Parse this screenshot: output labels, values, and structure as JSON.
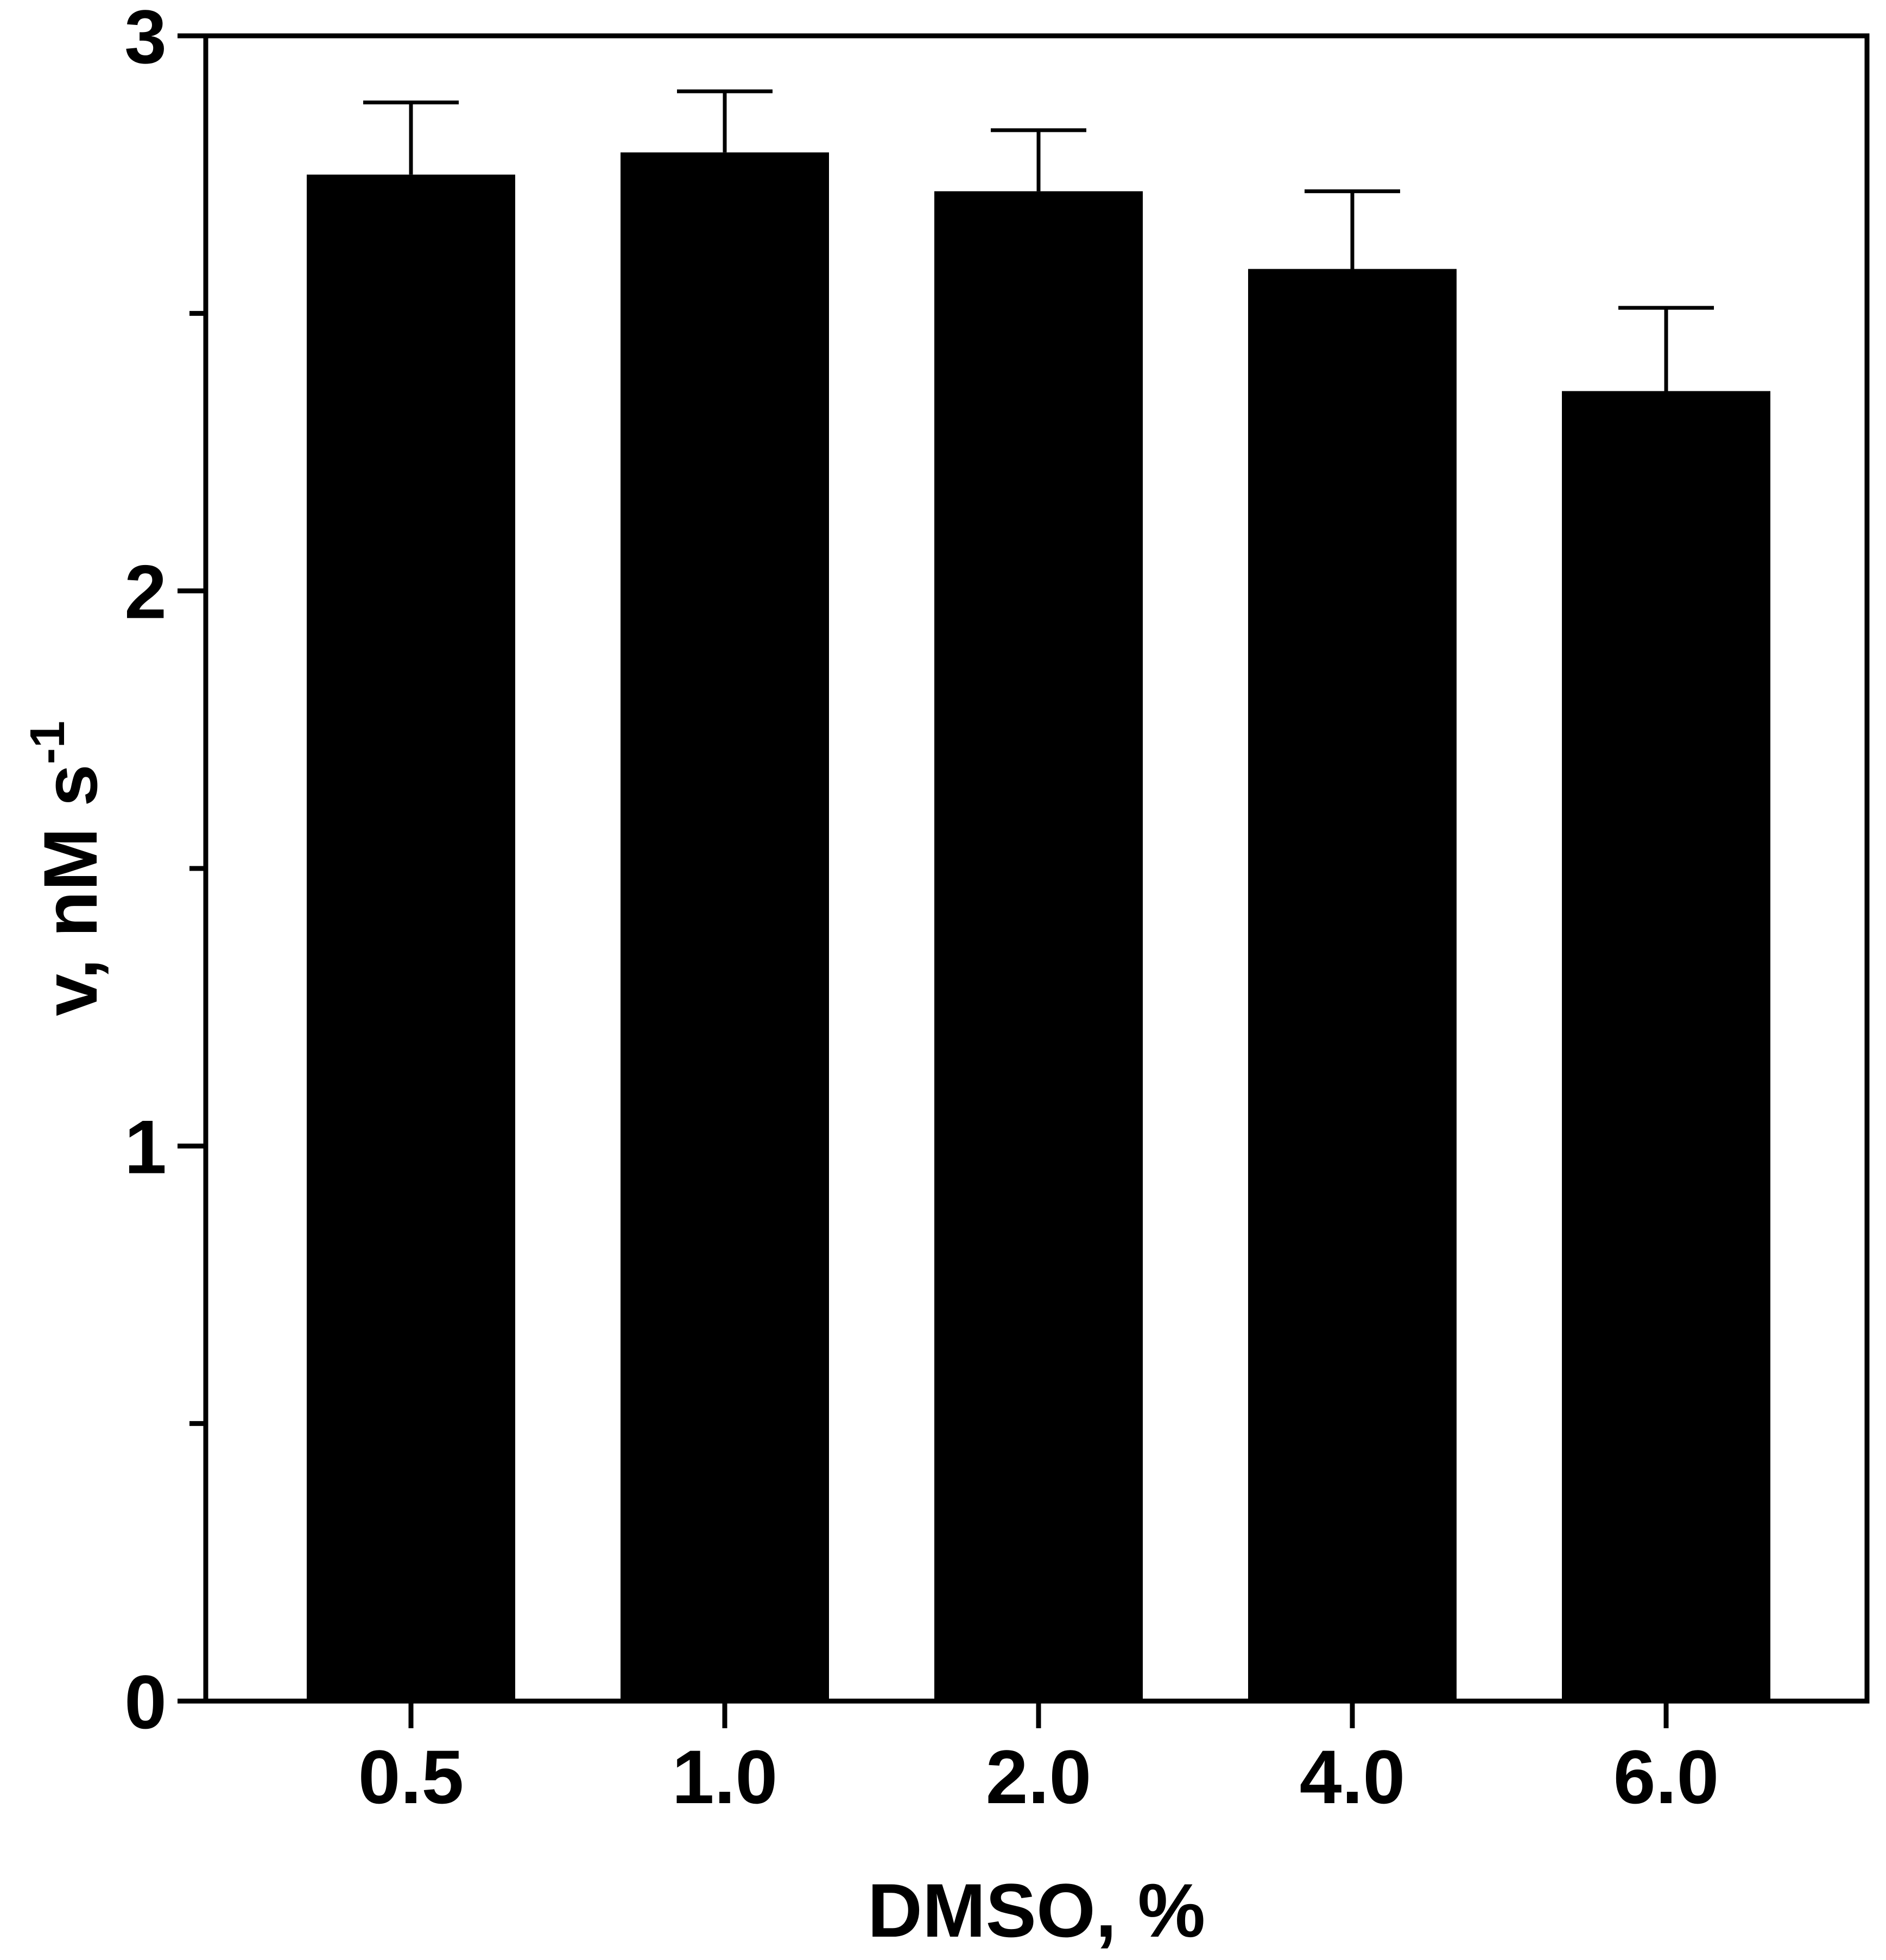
{
  "chart_data": {
    "type": "bar",
    "title": "",
    "xlabel": "DMSO, %",
    "ylabel_main": "v, nM s",
    "ylabel_superscript": "-1",
    "categories": [
      "0.5",
      "1.0",
      "2.0",
      "4.0",
      "6.0"
    ],
    "values": [
      2.75,
      2.79,
      2.72,
      2.58,
      2.36
    ],
    "error_plus": [
      0.13,
      0.11,
      0.11,
      0.14,
      0.15
    ],
    "ylim": [
      0,
      3
    ],
    "y_major_ticks": [
      "0",
      "1",
      "2",
      "3"
    ],
    "y_minor_ticks": [
      0.5,
      1.5,
      2.5
    ],
    "grid": false,
    "legend": "none",
    "bar_color": "#000000",
    "axis_color": "#000000"
  }
}
